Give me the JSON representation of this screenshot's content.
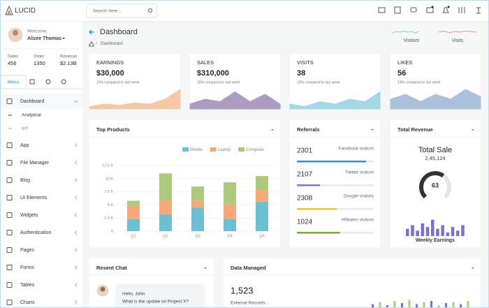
{
  "header": {
    "brand": "LUCID",
    "search_placeholder": "Search here..."
  },
  "sidebar": {
    "welcome": "Welcome,",
    "user": "Alizee Thomas",
    "stats": [
      {
        "label": "Sales",
        "value": "456"
      },
      {
        "label": "Order",
        "value": "1350"
      },
      {
        "label": "Revenue",
        "value": "$2.13B"
      }
    ],
    "tab": "Menu",
    "menu": [
      "Dashboard",
      "App",
      "File Manager",
      "Blog",
      "UI Elements",
      "Widgets",
      "Authentication",
      "Pages",
      "Forms",
      "Tables",
      "Charts"
    ],
    "submenu": [
      "Analytical",
      "IoT"
    ]
  },
  "page": {
    "title": "Dashboard",
    "breadcrumb": "Dashboard"
  },
  "mini_trends": [
    {
      "name": "Visitors",
      "color": "#7fd1c7",
      "values": [
        4,
        6,
        5,
        7,
        5,
        6,
        4,
        6
      ]
    },
    {
      "name": "Visits",
      "color": "#f08fa0",
      "values": [
        5,
        7,
        4,
        6,
        5,
        7,
        6,
        5
      ]
    }
  ],
  "cards": [
    {
      "title": "EARNINGS",
      "value": "$30,000",
      "note": "19% compared to last week",
      "color": "#f6c8a5",
      "trend": [
        1,
        2,
        1.5,
        2.5,
        2,
        4,
        8
      ]
    },
    {
      "title": "SALES",
      "value": "$310,000",
      "note": "25% compared to last week",
      "color": "#ab9cc2",
      "trend": [
        2,
        4,
        3,
        7,
        3,
        6,
        2
      ]
    },
    {
      "title": "VISITS",
      "value": "38",
      "note": "19% compared to last week",
      "color": "#a2d8e2",
      "trend": [
        2,
        1,
        3,
        2,
        4,
        3,
        7
      ]
    },
    {
      "title": "LIKES",
      "value": "56",
      "note": "19% compared to last week",
      "color": "#aac0dc",
      "trend": [
        4,
        6,
        3,
        6,
        4,
        8,
        5
      ]
    }
  ],
  "chart_data": {
    "type": "bar",
    "title": "Top Products",
    "categories": [
      "Q1",
      "Q2",
      "Q3",
      "Q4",
      "Q5"
    ],
    "series": [
      {
        "name": "Mobile",
        "color": "#6dbfd3",
        "values": [
          2300,
          3200,
          4500,
          2300,
          5600
        ]
      },
      {
        "name": "Laptop",
        "color": "#f6a877",
        "values": [
          2500,
          2600,
          1300,
          2800,
          2200
        ]
      },
      {
        "name": "Computer",
        "color": "#aec97c",
        "values": [
          1000,
          5200,
          2700,
          4200,
          2700
        ]
      }
    ],
    "stacked": true,
    "ylim": [
      0,
      12500
    ],
    "yticks": [
      0,
      {
        "value": 2500,
        "label": "2.5 K"
      },
      {
        "value": 5000,
        "label": "5 K"
      },
      {
        "value": 7500,
        "label": "7.5 K"
      },
      {
        "value": 10000,
        "label": "10 K"
      },
      {
        "value": 12500,
        "label": "12.5 K"
      }
    ],
    "grid": true,
    "legend": "top-right"
  },
  "referrals": {
    "title": "Referrals",
    "items": [
      {
        "value": "2301",
        "label": "Facebook visitors",
        "progress": 90,
        "color": "#2a8fd4"
      },
      {
        "value": "2107",
        "label": "Twitter visitors",
        "progress": 30,
        "color": "#8a6fd6"
      },
      {
        "value": "2308",
        "label": "Google visitors",
        "progress": 52,
        "color": "#f0c52d"
      },
      {
        "value": "1024",
        "label": "Affiliates visitors",
        "progress": 56,
        "color": "#6fb03c"
      }
    ]
  },
  "revenue": {
    "title": "Total Revenue",
    "heading": "Total Sale",
    "amount": "2,45,124",
    "gauge": 63,
    "weekly": [
      4,
      6,
      3,
      7,
      5,
      9,
      4,
      6,
      2,
      5,
      3,
      6
    ],
    "weekly_label": "Weekly Earnings"
  },
  "chat": {
    "title": "Resent Chat",
    "greeting": "Hello, John",
    "message": "What is the update on Project X?"
  },
  "data_managed": {
    "title": "Data Managed",
    "value": "1,523",
    "label": "External Records",
    "bars": [
      3,
      5,
      2,
      6,
      4,
      7,
      3,
      5,
      6,
      2,
      4,
      5,
      3,
      6
    ]
  }
}
